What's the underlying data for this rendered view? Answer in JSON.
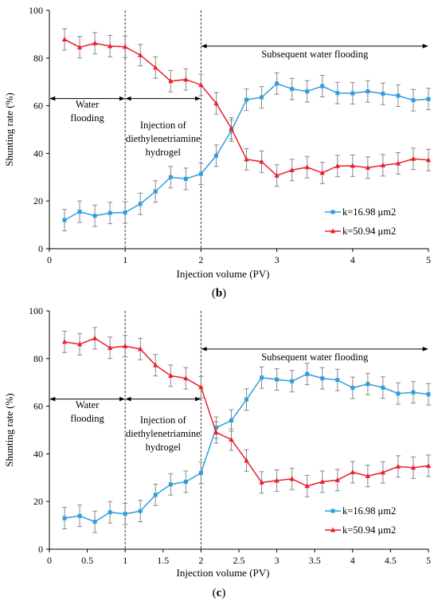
{
  "chart_data": [
    {
      "type": "line",
      "panel_label": "(b)",
      "panel_label_parts": [
        "(",
        "b",
        ")"
      ],
      "xlabel": "Injection volume (PV)",
      "ylabel": "Shunting rate (%)",
      "xlim": [
        0,
        5
      ],
      "ylim": [
        0,
        100
      ],
      "xticks": [
        "0",
        "1",
        "2",
        "3",
        "4",
        "5"
      ],
      "yticks": [
        "0",
        "20",
        "40",
        "60",
        "80",
        "100"
      ],
      "grid": false,
      "legend_position": "lower-right",
      "series": [
        {
          "name": "k=16.98 μm2",
          "color": "#2e9fdc",
          "marker": "square",
          "x": [
            0.2,
            0.4,
            0.6,
            0.8,
            1.0,
            1.2,
            1.4,
            1.6,
            1.8,
            2.0,
            2.2,
            2.4,
            2.6,
            2.8,
            3.0,
            3.2,
            3.4,
            3.6,
            3.8,
            4.0,
            4.2,
            4.4,
            4.6,
            4.8,
            5.0
          ],
          "values": [
            12,
            15.5,
            13.8,
            15,
            15.2,
            18.8,
            24,
            30,
            29.3,
            31.4,
            39,
            49.5,
            62.5,
            63.5,
            69.3,
            67,
            66,
            68.2,
            65.3,
            65.2,
            66,
            65,
            64.2,
            62.3,
            62.8
          ],
          "error": 4.5
        },
        {
          "name": "k=50.94 μm2",
          "color": "#e8202a",
          "marker": "triangle",
          "x": [
            0.2,
            0.4,
            0.6,
            0.8,
            1.0,
            1.2,
            1.4,
            1.6,
            1.8,
            2.0,
            2.2,
            2.4,
            2.6,
            2.8,
            3.0,
            3.2,
            3.4,
            3.6,
            3.8,
            4.0,
            4.2,
            4.4,
            4.6,
            4.8,
            5.0
          ],
          "values": [
            87.8,
            84.5,
            86.2,
            85,
            84.7,
            81.2,
            76,
            70.3,
            71,
            68.7,
            61,
            50.5,
            37.5,
            36.5,
            30.7,
            33,
            34.2,
            31.8,
            34.7,
            34.8,
            34,
            35,
            35.8,
            37.7,
            37.2
          ],
          "error": 4.5
        }
      ],
      "vlines": [
        1,
        2
      ],
      "annotations": [
        {
          "text_lines": [
            "Water",
            "flooding"
          ],
          "from": 0,
          "to": 1,
          "arrow_y": 63
        },
        {
          "text_lines": [
            "Injection of",
            "diethylenetriamine",
            "hydrogel"
          ],
          "from": 1,
          "to": 2,
          "arrow_y": 63
        },
        {
          "text_lines": [
            "Subsequent water flooding"
          ],
          "from": 2,
          "to": 5,
          "arrow_y": 85
        }
      ]
    },
    {
      "type": "line",
      "panel_label": "(c)",
      "panel_label_parts": [
        "(",
        "c",
        ")"
      ],
      "xlabel": "Injection volume (PV)",
      "ylabel": "Shunting rate (%)",
      "xlim": [
        0,
        5
      ],
      "ylim": [
        0,
        100
      ],
      "xticks": [
        "0",
        "0.5",
        "1",
        "1.5",
        "2",
        "2.5",
        "3",
        "3.5",
        "4",
        "4.5",
        "5"
      ],
      "yticks": [
        "0",
        "20",
        "40",
        "60",
        "80",
        "100"
      ],
      "grid": false,
      "legend_position": "lower-right",
      "series": [
        {
          "name": "k=16.98 μm2",
          "color": "#2e9fdc",
          "marker": "square",
          "x": [
            0.2,
            0.4,
            0.6,
            0.8,
            1.0,
            1.2,
            1.4,
            1.6,
            1.8,
            2.0,
            2.2,
            2.4,
            2.6,
            2.8,
            3.0,
            3.2,
            3.4,
            3.6,
            3.8,
            4.0,
            4.2,
            4.4,
            4.6,
            4.8,
            5.0
          ],
          "values": [
            13,
            14,
            11.5,
            15.5,
            14.8,
            16,
            22.8,
            27.2,
            28.3,
            32,
            51,
            54,
            62.8,
            72,
            71.2,
            70.5,
            73.5,
            71.7,
            71,
            67.7,
            69.3,
            67.8,
            65.3,
            65.8,
            65
          ],
          "error": 4.5
        },
        {
          "name": "k=50.94 μm2",
          "color": "#e8202a",
          "marker": "triangle",
          "x": [
            0.2,
            0.4,
            0.6,
            0.8,
            1.0,
            1.2,
            1.4,
            1.6,
            1.8,
            2.0,
            2.2,
            2.4,
            2.6,
            2.8,
            3.0,
            3.2,
            3.4,
            3.6,
            3.8,
            4.0,
            4.2,
            4.4,
            4.6,
            4.8,
            5.0
          ],
          "values": [
            87,
            86,
            88.5,
            84.5,
            85.2,
            84,
            77.2,
            72.8,
            71.7,
            68,
            49,
            46,
            37.2,
            28,
            28.8,
            29.5,
            26.5,
            28.3,
            29,
            32.3,
            30.7,
            32.2,
            34.7,
            34.2,
            35
          ],
          "error": 4.5
        }
      ],
      "vlines": [
        1,
        2
      ],
      "annotations": [
        {
          "text_lines": [
            "Water",
            "flooding"
          ],
          "from": 0,
          "to": 1,
          "arrow_y": 63
        },
        {
          "text_lines": [
            "Injection of",
            "diethylenetriamine",
            "hydrogel"
          ],
          "from": 1,
          "to": 2,
          "arrow_y": 63
        },
        {
          "text_lines": [
            "Subsequent water flooding"
          ],
          "from": 2,
          "to": 5,
          "arrow_y": 84
        }
      ]
    }
  ]
}
